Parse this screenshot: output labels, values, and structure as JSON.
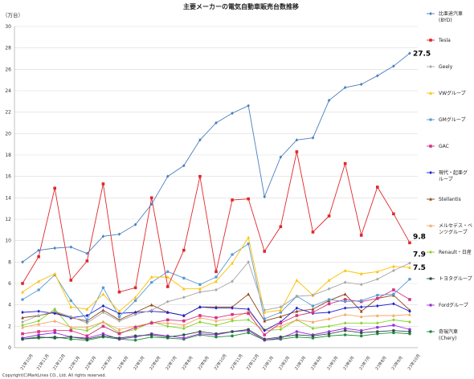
{
  "chart_data": {
    "type": "line",
    "title": "主要メーカーの電気自動車販売台数推移",
    "ylabel": "（万台）",
    "xlabel": "",
    "ylim": [
      0,
      30
    ],
    "yticks": [
      0,
      2,
      4,
      6,
      8,
      10,
      12,
      14,
      16,
      18,
      20,
      22,
      24,
      26,
      28,
      30
    ],
    "grid": true,
    "legend_position": "right",
    "x": [
      "21年10月",
      "21年11月",
      "21年12月",
      "22年1月",
      "22年2月",
      "22年3月",
      "22年4月",
      "22年5月",
      "22年6月",
      "22年7月",
      "22年8月",
      "22年9月",
      "22年10月",
      "22年11月",
      "22年12月",
      "23年1月",
      "23年2月",
      "23年3月",
      "23年4月",
      "23年5月",
      "23年6月",
      "23年7月",
      "23年8月",
      "23年9月",
      "23年10月"
    ],
    "series": [
      {
        "name": "比亜迪汽車\n(BYD)",
        "color": "#4a7ebf",
        "marker": "diamond",
        "values": [
          8.0,
          9.1,
          9.3,
          9.4,
          8.8,
          10.4,
          10.6,
          11.5,
          13.4,
          16.0,
          17.0,
          19.4,
          21.0,
          21.9,
          22.6,
          14.1,
          17.8,
          19.4,
          19.6,
          23.1,
          24.3,
          24.6,
          25.4,
          26.3,
          27.5
        ]
      },
      {
        "name": "Tesla",
        "color": "#e0262b",
        "marker": "square",
        "values": [
          6.0,
          8.5,
          14.9,
          6.3,
          8.1,
          15.3,
          5.2,
          5.6,
          14.0,
          5.7,
          9.1,
          16.0,
          7.1,
          13.8,
          13.9,
          9.0,
          11.3,
          18.3,
          10.8,
          12.3,
          17.2,
          10.5,
          15.0,
          12.5,
          9.8
        ]
      },
      {
        "name": "Geely",
        "color": "#a6a6a6",
        "marker": "diamond",
        "values": [
          2.4,
          3.0,
          3.4,
          2.9,
          2.3,
          3.3,
          2.5,
          3.1,
          3.5,
          4.3,
          4.7,
          5.2,
          5.4,
          6.2,
          8.0,
          3.5,
          3.8,
          4.8,
          4.9,
          5.5,
          6.1,
          5.9,
          6.4,
          7.2,
          7.9
        ]
      },
      {
        "name": "VWグループ",
        "color": "#ffc000",
        "marker": "triangle",
        "values": [
          5.2,
          6.2,
          6.9,
          3.8,
          3.6,
          5.0,
          3.4,
          4.7,
          6.6,
          6.6,
          5.5,
          5.5,
          6.2,
          7.9,
          10.3,
          3.3,
          3.5,
          6.3,
          4.9,
          6.3,
          7.2,
          6.9,
          7.1,
          7.6,
          7.5
        ]
      },
      {
        "name": "GMグループ",
        "color": "#5b9bd5",
        "marker": "circle",
        "values": [
          4.5,
          5.4,
          6.8,
          4.4,
          2.6,
          5.6,
          2.9,
          4.4,
          6.1,
          7.1,
          6.5,
          5.9,
          6.6,
          8.7,
          9.7,
          2.7,
          3.3,
          4.8,
          3.9,
          4.5,
          4.3,
          4.4,
          4.9,
          5.0,
          6.4
        ]
      },
      {
        "name": "GAC",
        "color": "#d63384",
        "marker": "square",
        "values": [
          1.3,
          1.5,
          1.6,
          1.6,
          1.1,
          2.0,
          1.3,
          1.9,
          2.3,
          2.6,
          2.5,
          3.0,
          2.8,
          3.1,
          3.2,
          1.2,
          2.3,
          3.0,
          3.3,
          4.1,
          4.5,
          4.3,
          4.6,
          5.4,
          4.5
        ]
      },
      {
        "name": "現代・起亜グ\nループ",
        "color": "#1f1fd1",
        "marker": "diamond",
        "values": [
          3.3,
          3.4,
          3.2,
          2.8,
          3.0,
          3.9,
          3.2,
          3.3,
          3.4,
          3.3,
          3.0,
          3.8,
          3.7,
          3.7,
          3.6,
          1.6,
          2.4,
          3.7,
          3.2,
          3.3,
          3.7,
          3.8,
          3.9,
          4.1,
          3.4
        ]
      },
      {
        "name": "Stellantis",
        "color": "#8b4513",
        "marker": "triangle",
        "values": [
          2.8,
          3.0,
          3.3,
          2.8,
          2.5,
          3.5,
          2.6,
          3.3,
          4.0,
          3.3,
          3.0,
          3.8,
          3.8,
          3.8,
          5.0,
          2.5,
          2.9,
          3.4,
          3.6,
          4.4,
          5.0,
          3.4,
          4.6,
          4.9,
          3.5
        ]
      },
      {
        "name": "メルセデス・ベ\nンツグループ",
        "color": "#f4a460",
        "marker": "triangle",
        "values": [
          1.9,
          2.2,
          2.5,
          1.9,
          1.9,
          2.4,
          1.7,
          2.0,
          2.3,
          2.3,
          2.1,
          2.8,
          2.5,
          2.7,
          3.4,
          1.7,
          2.0,
          2.6,
          2.4,
          2.7,
          3.1,
          2.9,
          3.0,
          3.0,
          3.1
        ]
      },
      {
        "name": "Renault・日産",
        "color": "#7ed321",
        "marker": "diamond",
        "values": [
          2.1,
          2.5,
          3.6,
          1.8,
          1.6,
          2.4,
          1.4,
          1.7,
          2.4,
          2.0,
          1.8,
          2.4,
          2.1,
          2.5,
          2.6,
          1.6,
          1.7,
          2.6,
          1.8,
          2.0,
          2.3,
          2.3,
          2.3,
          2.6,
          2.4
        ]
      },
      {
        "name": "トヨタグループ",
        "color": "#2f4f4f",
        "marker": "circle",
        "values": [
          0.8,
          1.0,
          0.9,
          1.0,
          0.8,
          1.1,
          0.9,
          1.1,
          1.2,
          1.0,
          1.2,
          1.5,
          1.3,
          1.5,
          1.7,
          0.8,
          1.0,
          1.2,
          1.1,
          1.3,
          1.6,
          1.4,
          1.5,
          1.6,
          1.5
        ]
      },
      {
        "name": "Fordグループ",
        "color": "#9b30d9",
        "marker": "circle",
        "values": [
          0.9,
          1.2,
          1.4,
          1.0,
          0.9,
          1.3,
          0.8,
          1.0,
          1.3,
          1.1,
          0.9,
          1.3,
          1.2,
          1.5,
          1.6,
          0.7,
          0.9,
          1.5,
          1.2,
          1.5,
          1.8,
          1.6,
          1.9,
          2.1,
          1.7
        ]
      },
      {
        "name": "奇瑞汽車\n(Chery)",
        "color": "#1e8c3a",
        "marker": "circle",
        "values": [
          0.8,
          0.9,
          1.0,
          0.8,
          0.7,
          1.0,
          0.8,
          0.7,
          1.0,
          0.9,
          0.8,
          1.2,
          1.0,
          1.1,
          1.4,
          0.7,
          0.8,
          1.0,
          0.9,
          1.1,
          1.2,
          1.1,
          1.3,
          1.4,
          1.3
        ]
      }
    ],
    "annotations": [
      {
        "series": "比亜迪汽車\n(BYD)",
        "text": "27.5"
      },
      {
        "series": "Tesla",
        "text": "9.8"
      },
      {
        "series": "Geely",
        "text": "7.9"
      },
      {
        "series": "VWグループ",
        "text": "7.5"
      }
    ]
  },
  "copyright": "Copyright(C)MarkLines CO., Ltd. All rights reserved."
}
